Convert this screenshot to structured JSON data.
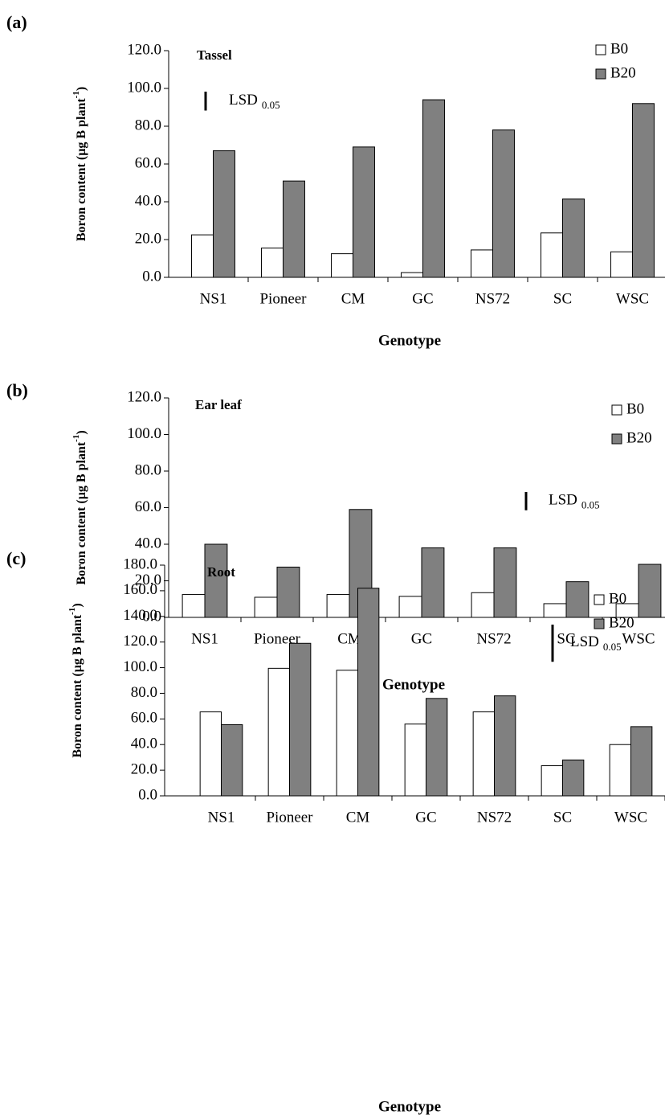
{
  "chart_data": [
    {
      "type": "bar",
      "panel_label": "(a)",
      "title": "Tassel",
      "categories": [
        "NS1",
        "Pioneer",
        "CM",
        "GC",
        "NS72",
        "SC",
        "WSC"
      ],
      "series": [
        {
          "name": "B0",
          "color": "#ffffff",
          "values": [
            22.5,
            15.5,
            12.5,
            2.5,
            14.5,
            23.5,
            13.5
          ]
        },
        {
          "name": "B20",
          "color": "#808080",
          "values": [
            67,
            51,
            69,
            94,
            78,
            41.5,
            92
          ]
        }
      ],
      "ylim": [
        0,
        120
      ],
      "yticks": [
        {
          "value": 0,
          "label": "0.0"
        },
        {
          "value": 20,
          "label": "20.0"
        },
        {
          "value": 40,
          "label": "40.0"
        },
        {
          "value": 60,
          "label": "60.0"
        },
        {
          "value": 80,
          "label": "80.0"
        },
        {
          "value": 100,
          "label": "100.0"
        },
        {
          "value": 120,
          "label": "120.0"
        }
      ],
      "x_label": "Genotype",
      "y_label": {
        "main": "Boron content (µg B plant",
        "sup": "-1",
        "end": ")"
      },
      "lsd": {
        "label": "LSD",
        "subscript": "0.05",
        "value": 10
      },
      "legend": "upper right"
    },
    {
      "type": "bar",
      "panel_label": "(b)",
      "title": "Ear leaf",
      "categories": [
        "NS1",
        "Pioneer",
        "CM",
        "GC",
        "NS72",
        "SC",
        "WSC"
      ],
      "series": [
        {
          "name": "B0",
          "color": "#ffffff",
          "values": [
            12.5,
            11,
            12.5,
            11.5,
            13.5,
            7.5,
            7.5
          ]
        },
        {
          "name": "B20",
          "color": "#808080",
          "values": [
            40,
            27.5,
            59,
            38,
            38,
            19.5,
            29
          ]
        }
      ],
      "ylim": [
        0,
        120
      ],
      "yticks": [
        {
          "value": 0,
          "label": "0.0"
        },
        {
          "value": 20,
          "label": "20.0"
        },
        {
          "value": 40,
          "label": "40.0"
        },
        {
          "value": 60,
          "label": "60.0"
        },
        {
          "value": 80,
          "label": "80.0"
        },
        {
          "value": 100,
          "label": "100.0"
        },
        {
          "value": 120,
          "label": "120.0"
        }
      ],
      "x_label": "Genotype",
      "y_label": {
        "main": "Boron content (µg B plant",
        "sup": "-1",
        "end": ")"
      },
      "lsd": {
        "label": "LSD",
        "subscript": "0.05",
        "value": 10
      },
      "legend": "upper right"
    },
    {
      "type": "bar",
      "panel_label": "(c)",
      "title": "Root",
      "categories": [
        "NS1",
        "Pioneer",
        "CM",
        "GC",
        "NS72",
        "SC",
        "WSC"
      ],
      "series": [
        {
          "name": "B0",
          "color": "#ffffff",
          "values": [
            65.5,
            99.5,
            98,
            56,
            65.5,
            23.5,
            40
          ]
        },
        {
          "name": "B20",
          "color": "#808080",
          "values": [
            55.5,
            119,
            162,
            76,
            78,
            28,
            54
          ]
        }
      ],
      "ylim": [
        0,
        180
      ],
      "yticks": [
        {
          "value": 0,
          "label": "0.0"
        },
        {
          "value": 20,
          "label": "20.0"
        },
        {
          "value": 40,
          "label": "40.0"
        },
        {
          "value": 60,
          "label": "60.0"
        },
        {
          "value": 80,
          "label": "80.0"
        },
        {
          "value": 100,
          "label": "100.0"
        },
        {
          "value": 120,
          "label": "120.0"
        },
        {
          "value": 140,
          "label": "140.0"
        },
        {
          "value": 160,
          "label": "160.0"
        },
        {
          "value": 180,
          "label": "180.0"
        }
      ],
      "x_label": "Genotype",
      "y_label": {
        "main": "Boron content (µg B plant",
        "sup": "-1",
        "end": ")"
      },
      "lsd": {
        "label": "LSD",
        "subscript": "0.05",
        "value": 29
      },
      "legend": "upper right"
    }
  ]
}
